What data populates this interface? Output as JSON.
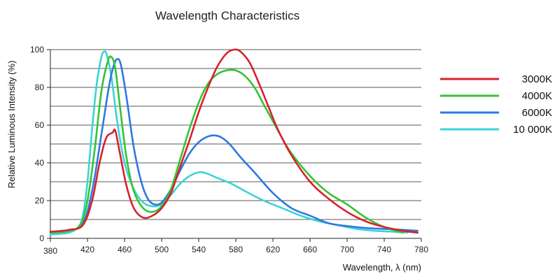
{
  "chart_data": {
    "type": "line",
    "title": "Wavelength Characteristics",
    "xlabel": "Wavelength, λ (nm)",
    "ylabel": "Relative Luminous Intensity (%)",
    "xlim": [
      380,
      780
    ],
    "ylim": [
      0,
      100
    ],
    "x_ticks": [
      380,
      420,
      460,
      500,
      540,
      580,
      620,
      660,
      700,
      740,
      780
    ],
    "y_ticks": [
      0,
      20,
      40,
      60,
      80,
      100
    ],
    "grid": "horizontal",
    "legend_position": "right",
    "series": [
      {
        "name": "3000K",
        "color": "#d8202f",
        "points": [
          [
            380,
            3.5
          ],
          [
            400,
            4.5
          ],
          [
            415,
            7
          ],
          [
            425,
            20
          ],
          [
            433,
            40
          ],
          [
            440,
            53
          ],
          [
            447,
            56
          ],
          [
            450,
            57
          ],
          [
            455,
            45
          ],
          [
            462,
            28
          ],
          [
            470,
            16
          ],
          [
            480,
            11
          ],
          [
            490,
            12
          ],
          [
            500,
            16
          ],
          [
            510,
            24
          ],
          [
            520,
            38
          ],
          [
            530,
            52
          ],
          [
            540,
            67
          ],
          [
            550,
            80
          ],
          [
            560,
            91
          ],
          [
            570,
            98
          ],
          [
            578,
            100
          ],
          [
            585,
            99
          ],
          [
            595,
            93
          ],
          [
            605,
            82
          ],
          [
            615,
            70
          ],
          [
            625,
            58
          ],
          [
            640,
            44
          ],
          [
            660,
            30
          ],
          [
            680,
            21
          ],
          [
            700,
            14
          ],
          [
            720,
            9
          ],
          [
            740,
            6
          ],
          [
            760,
            4
          ],
          [
            776,
            3
          ]
        ]
      },
      {
        "name": "4000K",
        "color": "#33c433",
        "points": [
          [
            380,
            3
          ],
          [
            400,
            4
          ],
          [
            412,
            7
          ],
          [
            420,
            20
          ],
          [
            428,
            48
          ],
          [
            435,
            78
          ],
          [
            442,
            94
          ],
          [
            446,
            96
          ],
          [
            450,
            90
          ],
          [
            455,
            70
          ],
          [
            462,
            43
          ],
          [
            470,
            25
          ],
          [
            480,
            16
          ],
          [
            490,
            14
          ],
          [
            500,
            17
          ],
          [
            510,
            26
          ],
          [
            520,
            42
          ],
          [
            530,
            58
          ],
          [
            540,
            72
          ],
          [
            550,
            82
          ],
          [
            560,
            87
          ],
          [
            570,
            89
          ],
          [
            580,
            89
          ],
          [
            590,
            86
          ],
          [
            600,
            80
          ],
          [
            610,
            71
          ],
          [
            620,
            62
          ],
          [
            630,
            53
          ],
          [
            640,
            45
          ],
          [
            660,
            33
          ],
          [
            680,
            24
          ],
          [
            700,
            18
          ],
          [
            720,
            11
          ],
          [
            740,
            6
          ],
          [
            760,
            3
          ]
        ]
      },
      {
        "name": "6000K",
        "color": "#2f78e0",
        "points": [
          [
            380,
            3
          ],
          [
            400,
            4
          ],
          [
            415,
            8
          ],
          [
            425,
            25
          ],
          [
            435,
            55
          ],
          [
            443,
            80
          ],
          [
            448,
            91
          ],
          [
            452,
            95
          ],
          [
            456,
            92
          ],
          [
            462,
            75
          ],
          [
            470,
            48
          ],
          [
            478,
            30
          ],
          [
            485,
            21
          ],
          [
            492,
            18
          ],
          [
            500,
            19
          ],
          [
            510,
            26
          ],
          [
            520,
            36
          ],
          [
            530,
            45
          ],
          [
            540,
            51
          ],
          [
            550,
            54
          ],
          [
            558,
            54.5
          ],
          [
            566,
            53
          ],
          [
            575,
            49
          ],
          [
            585,
            43
          ],
          [
            600,
            35
          ],
          [
            620,
            24
          ],
          [
            640,
            16
          ],
          [
            660,
            12
          ],
          [
            680,
            8
          ],
          [
            700,
            6.5
          ],
          [
            720,
            5.5
          ],
          [
            740,
            5
          ],
          [
            760,
            4.5
          ],
          [
            776,
            4
          ]
        ]
      },
      {
        "name": "10 000K",
        "color": "#3dd3d3",
        "points": [
          [
            380,
            2
          ],
          [
            400,
            3
          ],
          [
            410,
            6
          ],
          [
            415,
            12
          ],
          [
            420,
            30
          ],
          [
            425,
            58
          ],
          [
            430,
            82
          ],
          [
            435,
            96
          ],
          [
            438,
            99
          ],
          [
            441,
            97
          ],
          [
            446,
            85
          ],
          [
            452,
            62
          ],
          [
            460,
            40
          ],
          [
            470,
            26
          ],
          [
            480,
            19
          ],
          [
            490,
            17
          ],
          [
            500,
            18
          ],
          [
            510,
            23
          ],
          [
            520,
            29
          ],
          [
            530,
            33
          ],
          [
            540,
            35
          ],
          [
            548,
            34.5
          ],
          [
            560,
            32
          ],
          [
            575,
            29
          ],
          [
            590,
            25
          ],
          [
            610,
            20
          ],
          [
            630,
            16
          ],
          [
            650,
            12
          ],
          [
            670,
            9
          ],
          [
            690,
            7
          ],
          [
            710,
            5
          ],
          [
            730,
            4
          ],
          [
            750,
            3.5
          ],
          [
            765,
            3
          ]
        ]
      }
    ]
  }
}
